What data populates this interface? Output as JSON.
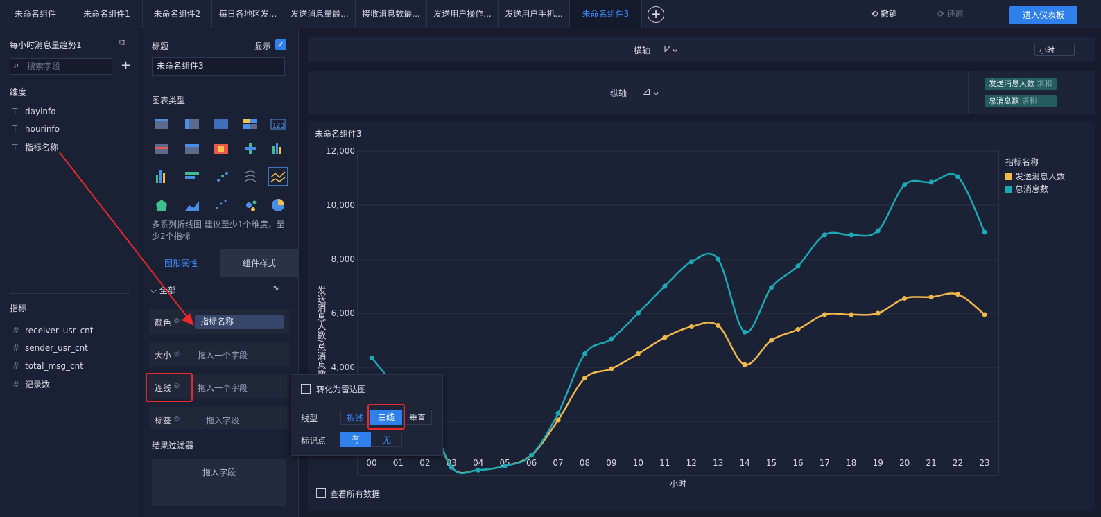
{
  "tabs": [
    "未命名组件",
    "未命名组件1",
    "未命名组件2",
    "每日各地区发...",
    "发送消息量最...",
    "接收消息数最...",
    "发送用户操作...",
    "发送用户手机...",
    "未命名组件3"
  ],
  "toolbar": {
    "undo": "撤销",
    "redo": "还原",
    "enter": "进入仪表板",
    "add": "+"
  },
  "left": {
    "dataset": "每小时消息量趋势1",
    "search_placeholder": "搜索字段",
    "dimension_title": "维度",
    "dimensions": [
      "dayinfo",
      "hourinfo",
      "指标名称"
    ],
    "metric_title": "指标",
    "metrics": [
      "receiver_usr_cnt",
      "sender_usr_cnt",
      "total_msg_cnt",
      "记录数"
    ]
  },
  "mid": {
    "title_label": "标题",
    "show_label": "显示",
    "title_value": "未命名组件3",
    "chart_type_label": "图表类型",
    "chart_hint": "多系列折线图 建议至少1个维度，至少2个指标",
    "tab_graph": "图形属性",
    "tab_style": "组件样式",
    "all_label": "全部",
    "color_label": "颜色",
    "color_value": "指标名称",
    "size_label": "大小",
    "size_ph": "拖入一个字段",
    "line_label": "连线",
    "line_ph": "拖入一个字段",
    "tag_label": "标签",
    "tag_ph": "拖入字段",
    "filter_label": "结果过滤器",
    "filter_ph": "拖入字段"
  },
  "popup": {
    "radar": "转化为雷达图",
    "line_type": "线型",
    "broken": "折线",
    "curve": "曲线",
    "vertical": "垂直",
    "marker": "标记点",
    "yes": "有",
    "no": "无"
  },
  "axes": {
    "x_label": "横轴",
    "x_field": "小时",
    "y_label": "纵轴",
    "y_fields": [
      {
        "name": "发送消息人数",
        "agg": "求和"
      },
      {
        "name": "总消息数",
        "agg": "求和"
      }
    ]
  },
  "view_all": "查看所有数据",
  "colors": {
    "accent": "#2f80ed",
    "series1": "#f2b84b",
    "series2": "#1ba9b8"
  },
  "chart_data": {
    "type": "line",
    "title": "未命名组件3",
    "xlabel": "小时",
    "ylabel": "发送消息人数/总消息数",
    "ylim": [
      0,
      12000
    ],
    "yticks": [
      "12,000",
      "10,000",
      "8,000",
      "6,000",
      "4,000"
    ],
    "legend_title": "指标名称",
    "categories": [
      "00",
      "01",
      "02",
      "03",
      "04",
      "05",
      "06",
      "07",
      "08",
      "09",
      "10",
      "11",
      "12",
      "13",
      "14",
      "15",
      "16",
      "17",
      "18",
      "19",
      "20",
      "21",
      "22",
      "23"
    ],
    "series": [
      {
        "name": "发送消息人数",
        "values": [
          3550,
          3100,
          2500,
          300,
          200,
          350,
          750,
          2050,
          3600,
          3950,
          4500,
          5100,
          5500,
          5550,
          4100,
          5000,
          5400,
          5950,
          5950,
          6000,
          6550,
          6600,
          6700,
          5950
        ]
      },
      {
        "name": "总消息数",
        "values": [
          4350,
          3250,
          2700,
          300,
          200,
          350,
          750,
          2300,
          4500,
          5050,
          6000,
          7000,
          7900,
          8000,
          5300,
          6950,
          7750,
          8900,
          8900,
          9050,
          10750,
          10850,
          11050,
          9000
        ]
      }
    ]
  }
}
